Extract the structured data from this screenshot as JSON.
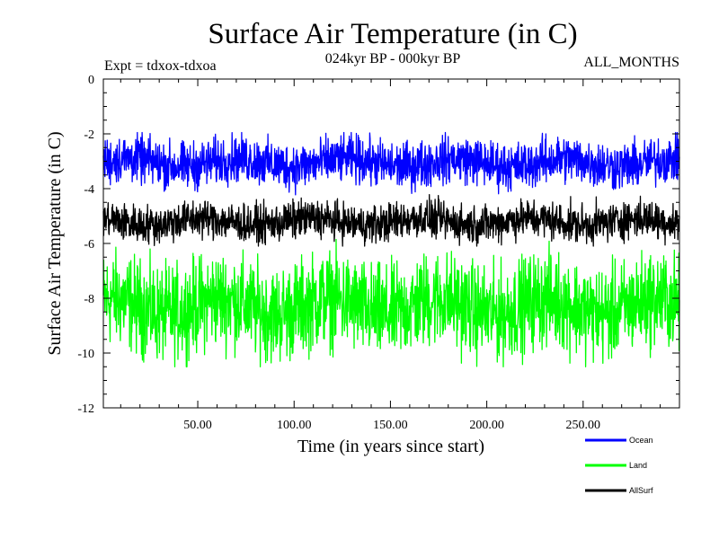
{
  "chart_data": {
    "type": "line",
    "title": "Surface Air Temperature (in C)",
    "subtitle": "024kyr BP - 000kyr BP",
    "experiment_label": "Expt = tdxox-tdxoa",
    "period_label": "ALL_MONTHS",
    "xlabel": "Time (in years since start)",
    "ylabel": "Surface Air Temperature (in C)",
    "xlim": [
      1,
      300
    ],
    "ylim": [
      -12,
      0
    ],
    "x_ticks": [
      50,
      100,
      150,
      200,
      250
    ],
    "x_tick_labels": [
      "50.00",
      "100.00",
      "150.00",
      "200.00",
      "250.00"
    ],
    "y_ticks": [
      0,
      -2,
      -4,
      -6,
      -8,
      -10,
      -12
    ],
    "y_tick_labels": [
      "0",
      "-2",
      "-4",
      "-6",
      "-8",
      "-10",
      "-12"
    ],
    "grid": false,
    "legend_position": "bottom-right, below plot",
    "series": [
      {
        "name": "Ocean",
        "color": "#0000ff",
        "mean": -3.05,
        "min": -4.3,
        "max": -1.95,
        "approx_range": [
          -4.3,
          -1.95
        ]
      },
      {
        "name": "Land",
        "color": "#00ff00",
        "mean": -8.3,
        "min": -10.5,
        "max": -5.8,
        "approx_range": [
          -10.5,
          -5.8
        ]
      },
      {
        "name": "AllSurf",
        "color": "#000000",
        "mean": -5.2,
        "min": -6.1,
        "max": -4.2,
        "approx_range": [
          -6.1,
          -4.2
        ]
      }
    ]
  }
}
